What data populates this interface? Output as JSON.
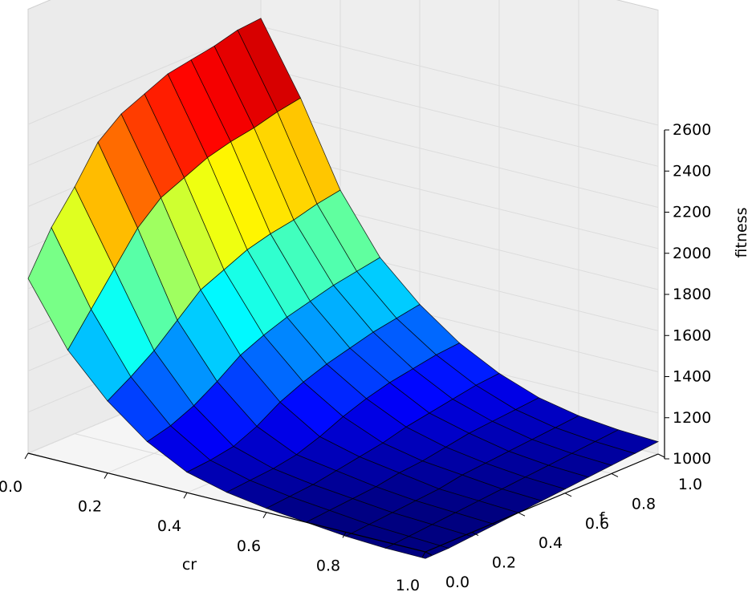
{
  "chart_data": {
    "type": "surface",
    "title": "",
    "xlabel": "cr",
    "ylabel": "f",
    "zlabel": "fitness",
    "xlim": [
      0.0,
      1.0
    ],
    "ylim": [
      0.0,
      1.0
    ],
    "zlim": [
      1000,
      2600
    ],
    "x_ticks": [
      "0.0",
      "0.2",
      "0.4",
      "0.6",
      "0.8",
      "1.0"
    ],
    "y_ticks": [
      "0.0",
      "0.2",
      "0.4",
      "0.6",
      "0.8",
      "1.0"
    ],
    "z_ticks": [
      "1000",
      "1200",
      "1400",
      "1600",
      "1800",
      "2000",
      "2200",
      "2400",
      "2600"
    ],
    "colormap": "jet",
    "grid": true,
    "x": [
      0.0,
      0.1,
      0.2,
      0.3,
      0.4,
      0.5,
      0.6,
      0.7,
      0.8,
      0.9,
      1.0
    ],
    "y": [
      0.0,
      0.1,
      0.2,
      0.3,
      0.4,
      0.5,
      0.6,
      0.7,
      0.8,
      0.9,
      1.0
    ],
    "z": [
      [
        1850,
        2050,
        2200,
        2370,
        2460,
        2510,
        2560,
        2580,
        2600,
        2630,
        2640
      ],
      [
        1550,
        1700,
        1850,
        2000,
        2100,
        2150,
        2200,
        2230,
        2250,
        2280,
        2300
      ],
      [
        1350,
        1420,
        1500,
        1600,
        1700,
        1750,
        1800,
        1830,
        1850,
        1880,
        1900
      ],
      [
        1200,
        1230,
        1280,
        1350,
        1430,
        1480,
        1520,
        1550,
        1580,
        1600,
        1620
      ],
      [
        1100,
        1110,
        1130,
        1180,
        1250,
        1300,
        1340,
        1370,
        1400,
        1420,
        1440
      ],
      [
        1050,
        1060,
        1070,
        1090,
        1130,
        1180,
        1220,
        1250,
        1270,
        1290,
        1300
      ],
      [
        1020,
        1030,
        1040,
        1060,
        1080,
        1100,
        1130,
        1150,
        1170,
        1190,
        1200
      ],
      [
        1000,
        1010,
        1020,
        1030,
        1050,
        1060,
        1080,
        1100,
        1110,
        1120,
        1130
      ],
      [
        980,
        990,
        1000,
        1010,
        1020,
        1040,
        1050,
        1060,
        1070,
        1080,
        1090
      ],
      [
        970,
        980,
        990,
        1000,
        1010,
        1020,
        1030,
        1040,
        1050,
        1060,
        1070
      ],
      [
        960,
        970,
        980,
        990,
        1000,
        1010,
        1020,
        1030,
        1040,
        1050,
        1060
      ]
    ]
  }
}
